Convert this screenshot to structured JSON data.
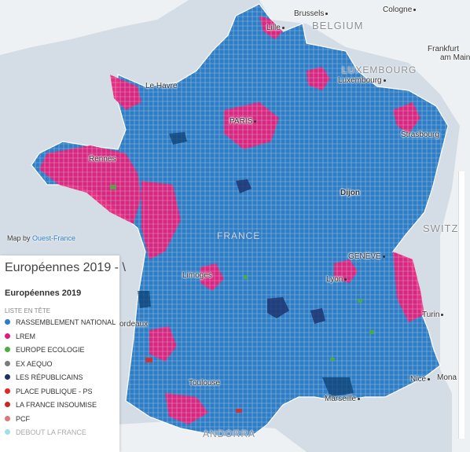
{
  "map": {
    "attribution_prefix": "Map by",
    "attribution_link": "Ouest-France",
    "countries": {
      "belgium": "BELGIUM",
      "luxembourg": "LUXEMBOURG",
      "france": "FRANCE",
      "switzerland": "SWITZ",
      "andorra": "ANDORRA"
    },
    "cities": {
      "brussels": "Brussels",
      "cologne": "Cologne",
      "lille": "Lille",
      "frankfurt": "Frankfurt",
      "am_main": "am Main",
      "le_havre": "Le Havre",
      "luxembourg": "Luxembourg",
      "paris": "PARIS",
      "strasbourg": "Strasbourg",
      "rennes": "Rennes",
      "dijon": "Dijon",
      "geneve": "GENÈVE",
      "limoges": "Limoges",
      "lyon": "Lyon",
      "bordeaux": "ordeaux",
      "turin": "Turin",
      "toulouse": "Toulouse",
      "nice": "Nice",
      "monaco": "Mona",
      "marseille": "Marseille"
    },
    "colors": {
      "sea": "#d4dde5",
      "land": "#eef1f3",
      "rn": "#2f7dc4",
      "lrem": "#e3227b"
    }
  },
  "legend": {
    "title": "Européennes 2019 - \\",
    "subtitle": "Européennes 2019",
    "header": "LISTE EN TÊTE",
    "items": [
      {
        "label": "RASSEMBLEMENT NATIONAL",
        "color": "#2b7bc5"
      },
      {
        "label": "LREM",
        "color": "#e0197a"
      },
      {
        "label": "EUROPE ECOLOGIE",
        "color": "#4caf3e"
      },
      {
        "label": "EX AEQUO",
        "color": "#7a7a7a"
      },
      {
        "label": "LES RÉPUBLICAINS",
        "color": "#1d2f6b"
      },
      {
        "label": "PLACE PUBLIQUE - PS",
        "color": "#e52521"
      },
      {
        "label": "LA FRANCE INSOUMISE",
        "color": "#c62a22"
      },
      {
        "label": "PCF",
        "color": "#d9777a"
      },
      {
        "label": "DEBOUT LA FRANCE",
        "color": "#9fe0e6"
      }
    ]
  }
}
